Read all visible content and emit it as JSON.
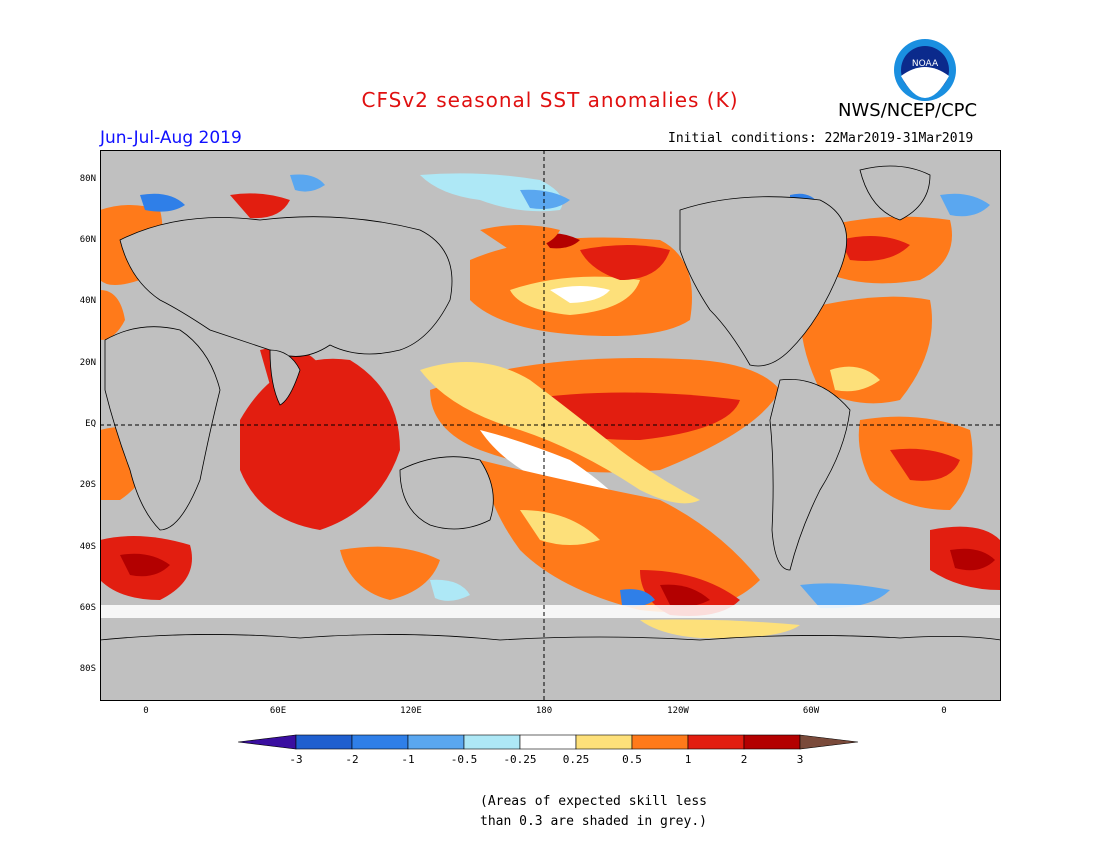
{
  "header": {
    "title": "CFSv2 seasonal SST anomalies (K)",
    "title_color": "#e01010",
    "org": "NWS/NCEP/CPC",
    "logo_text": "NOAA",
    "period": "Jun-Jul-Aug 2019",
    "initial_conditions": "Initial conditions: 22Mar2019-31Mar2019"
  },
  "map": {
    "lat_labels": [
      "80N",
      "60N",
      "40N",
      "20N",
      "EQ",
      "20S",
      "40S",
      "60S",
      "80S"
    ],
    "lon_labels": [
      "0",
      "60E",
      "120E",
      "180",
      "120W",
      "60W",
      "0"
    ],
    "masked_color": "#c0c0c0",
    "land_color": "#ffffff",
    "reference_lines": [
      "EQ",
      "180"
    ]
  },
  "colorbar": {
    "ticks": [
      "-3",
      "-2",
      "-1",
      "-0.5",
      "-0.25",
      "0.25",
      "0.5",
      "1",
      "2",
      "3"
    ],
    "colors": [
      "#3a0ea0",
      "#1f5fcf",
      "#2f7fe8",
      "#5aa7f0",
      "#aee8f6",
      "#ffffff",
      "#fde07a",
      "#ff7a1a",
      "#e21e10",
      "#b30000",
      "#7a4a3a"
    ]
  },
  "note": {
    "line1": "(Areas of expected skill less",
    "line2": "than 0.3 are shaded in grey.)"
  }
}
